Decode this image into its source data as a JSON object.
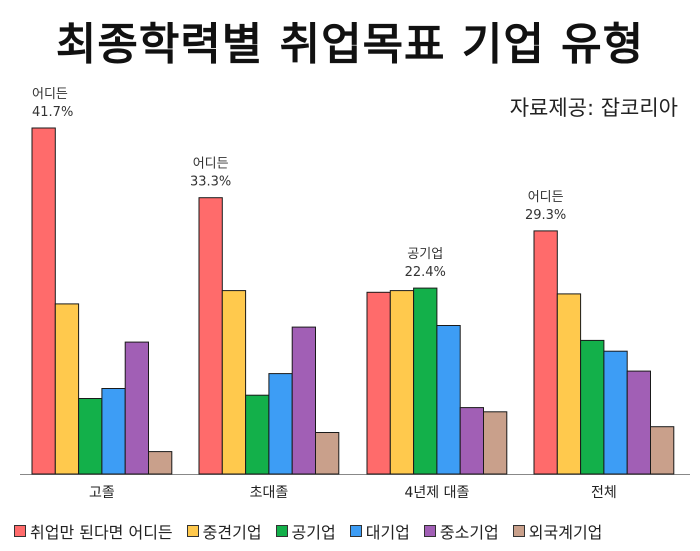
{
  "title": "최종학력별 취업목표 기업 유형",
  "source": "자료제공: 잡코리아",
  "chart_data": {
    "type": "bar",
    "categories": [
      "고졸",
      "초대졸",
      "4년제 대졸",
      "전체"
    ],
    "series": [
      {
        "name": "취업만 된다면 어디든",
        "color": "#ff6b6b",
        "values": [
          41.7,
          33.3,
          21.9,
          29.3
        ]
      },
      {
        "name": "중견기업",
        "color": "#ffc94d",
        "values": [
          20.5,
          22.1,
          22.1,
          21.7
        ]
      },
      {
        "name": "공기업",
        "color": "#13b04a",
        "values": [
          9.1,
          9.5,
          22.4,
          16.1
        ]
      },
      {
        "name": "대기업",
        "color": "#3d9df5",
        "values": [
          10.3,
          12.1,
          17.9,
          14.8
        ]
      },
      {
        "name": "중소기업",
        "color": "#a15fb5",
        "values": [
          15.9,
          17.7,
          8.0,
          12.4
        ]
      },
      {
        "name": "외국계기업",
        "color": "#c9a08b",
        "values": [
          2.7,
          5.0,
          7.5,
          5.7
        ]
      }
    ],
    "annotations": [
      {
        "category": "고졸",
        "label": "어디든",
        "value_text": "41.7%"
      },
      {
        "category": "초대졸",
        "label": "어디든",
        "value_text": "33.3%"
      },
      {
        "category": "4년제 대졸",
        "label": "공기업",
        "value_text": "22.4%"
      },
      {
        "category": "전체",
        "label": "어디든",
        "value_text": "29.3%"
      }
    ],
    "ylim": [
      0,
      41.7
    ],
    "grid": false,
    "legend_position": "bottom"
  }
}
